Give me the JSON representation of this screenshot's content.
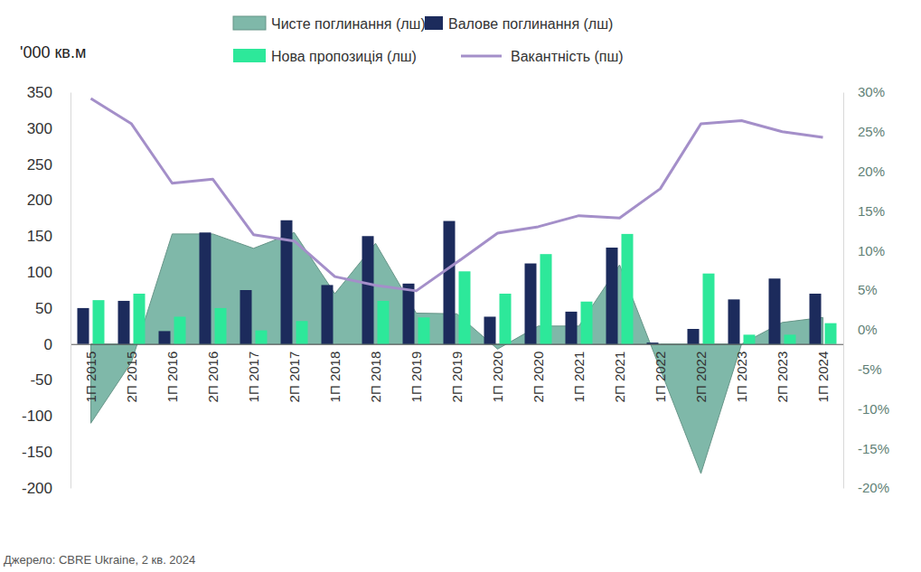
{
  "chart_data": {
    "type": "combo",
    "y_label": "'000 кв.м",
    "source": "Джерело: CBRE Ukraine, 2 кв. 2024",
    "legend": "top",
    "categories": [
      "1П 2015",
      "2П 2015",
      "1П 2016",
      "2П 2016",
      "1П 2017",
      "2П 2017",
      "1П 2018",
      "2П 2018",
      "1П 2019",
      "2П 2019",
      "1П 2020",
      "2П 2020",
      "1П 2021",
      "2П 2021",
      "1П 2022",
      "2П 2022",
      "1П 2023",
      "2П 2023",
      "1П 2024"
    ],
    "series": [
      {
        "name": "Чисте поглинання (лш)",
        "type": "area",
        "color": "#7fb8a9",
        "values": [
          -110,
          -25,
          153,
          153,
          133,
          155,
          70,
          140,
          43,
          42,
          -7,
          25,
          25,
          110,
          -35,
          -180,
          0,
          30,
          37
        ]
      },
      {
        "name": "Валове поглинання (лш)",
        "type": "bar",
        "color": "#1c2b5c",
        "values": [
          50,
          60,
          18,
          155,
          75,
          172,
          82,
          150,
          84,
          171,
          38,
          112,
          45,
          134,
          2,
          21,
          62,
          91,
          70
        ]
      },
      {
        "name": "Нова пропозиція (лш)",
        "type": "bar",
        "color": "#2de89a",
        "values": [
          61,
          70,
          38,
          50,
          19,
          32,
          0,
          60,
          37,
          101,
          70,
          125,
          59,
          153,
          0,
          98,
          13,
          13,
          29
        ]
      },
      {
        "name": "Вакантність (пш)",
        "type": "line",
        "axis": "y2",
        "color": "#a48fc9",
        "values": [
          29.2,
          26,
          18.5,
          19,
          12,
          11.2,
          6.7,
          5.6,
          4.9,
          8.5,
          12.2,
          13,
          14.4,
          14.1,
          17.8,
          26,
          26.4,
          25,
          24.3
        ]
      }
    ],
    "ylim": [
      -200,
      350
    ],
    "yticks": [
      -200,
      -150,
      -100,
      -50,
      0,
      50,
      100,
      150,
      200,
      250,
      300,
      350
    ],
    "y2lim": [
      -20,
      30
    ],
    "y2ticks": [
      {
        "value": -20,
        "label": "-20%"
      },
      {
        "value": -15,
        "label": "-15%"
      },
      {
        "value": -10,
        "label": "-10%"
      },
      {
        "value": -5,
        "label": "-5%"
      },
      {
        "value": 0,
        "label": "0%"
      },
      {
        "value": 5,
        "label": "5%"
      },
      {
        "value": 10,
        "label": "10%"
      },
      {
        "value": 15,
        "label": "15%"
      },
      {
        "value": 20,
        "label": "20%"
      },
      {
        "value": 25,
        "label": "25%"
      },
      {
        "value": 30,
        "label": "30%"
      }
    ],
    "grid": false
  }
}
